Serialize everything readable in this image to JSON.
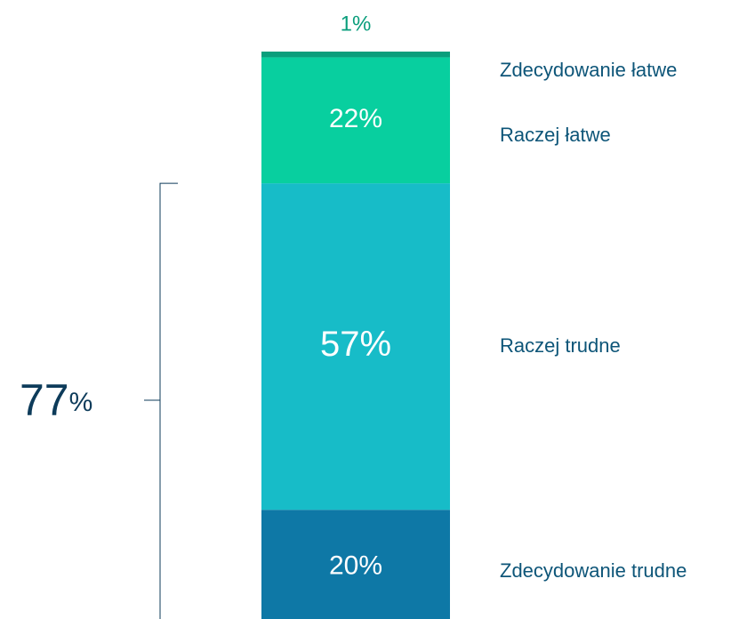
{
  "chart_data": {
    "type": "stacked_bar",
    "categories": [
      null
    ],
    "ylim": [
      0,
      100
    ],
    "series": [
      {
        "name": "Zdecydowanie trudne",
        "color": "#0e78a6",
        "values": [
          20
        ],
        "value_labels": [
          "20%"
        ]
      },
      {
        "name": "Raczej trudne",
        "color": "#17bcc8",
        "values": [
          57
        ],
        "value_labels": [
          "57%"
        ]
      },
      {
        "name": "Raczej łatwe",
        "color": "#08cf9f",
        "values": [
          22
        ],
        "value_labels": [
          "22%"
        ]
      },
      {
        "name": "Zdecydowanie łatwe",
        "color": "#0a9e7c",
        "values": [
          1
        ],
        "value_labels": [
          "1%"
        ]
      }
    ],
    "annotations": [
      {
        "value": 77,
        "label": "77%"
      }
    ]
  }
}
